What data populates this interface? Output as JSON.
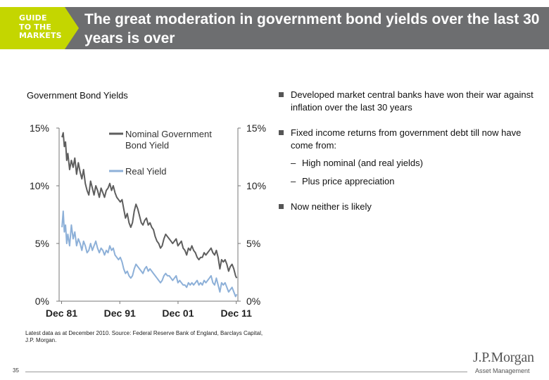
{
  "header": {
    "logo_lines": [
      "GUIDE",
      "TO THE",
      "MARKETS"
    ],
    "title": "The great moderation in government bond yields over the last 30 years is over"
  },
  "colors": {
    "header_bar": "#6d6e70",
    "logo_accent": "#c4d600",
    "nominal_series": "#5e5e5e",
    "real_series": "#8db0d8"
  },
  "chart_data": {
    "type": "line",
    "title": "Government Bond Yields",
    "x_tick_labels": [
      "Dec 81",
      "Dec 91",
      "Dec 01",
      "Dec 11"
    ],
    "x_tick_years": [
      1981.92,
      1991.92,
      2001.92,
      2011.92
    ],
    "xlim": [
      1981.5,
      2012.2
    ],
    "ylim": [
      0,
      15
    ],
    "y_tick_values": [
      0,
      5,
      10,
      15
    ],
    "y_tick_labels": [
      "0%",
      "5%",
      "10%",
      "15%"
    ],
    "dual_axis": true,
    "right_tick_labels": [
      "0%",
      "5%",
      "10%",
      "15%"
    ],
    "grid": false,
    "legend_position": "top-left-inside",
    "series": [
      {
        "name": "Nominal Government Bond Yield",
        "color": "#5e5e5e",
        "x": [
          1982.0,
          1982.2,
          1982.4,
          1982.6,
          1982.8,
          1983.0,
          1983.3,
          1983.6,
          1983.9,
          1984.2,
          1984.5,
          1984.8,
          1985.1,
          1985.4,
          1985.7,
          1986.0,
          1986.3,
          1986.6,
          1986.9,
          1987.2,
          1987.5,
          1987.8,
          1988.1,
          1988.4,
          1988.7,
          1989.0,
          1989.3,
          1989.6,
          1989.9,
          1990.2,
          1990.5,
          1990.8,
          1991.1,
          1991.4,
          1991.7,
          1992.0,
          1992.3,
          1992.6,
          1992.9,
          1993.2,
          1993.5,
          1993.8,
          1994.1,
          1994.4,
          1994.7,
          1995.0,
          1995.3,
          1995.6,
          1995.9,
          1996.2,
          1996.5,
          1996.8,
          1997.1,
          1997.4,
          1997.7,
          1998.0,
          1998.3,
          1998.6,
          1998.9,
          1999.2,
          1999.5,
          1999.8,
          2000.1,
          2000.4,
          2000.7,
          2001.0,
          2001.3,
          2001.6,
          2001.9,
          2002.2,
          2002.5,
          2002.8,
          2003.1,
          2003.4,
          2003.7,
          2004.0,
          2004.3,
          2004.6,
          2004.9,
          2005.2,
          2005.5,
          2005.8,
          2006.1,
          2006.4,
          2006.7,
          2007.0,
          2007.3,
          2007.6,
          2007.9,
          2008.2,
          2008.5,
          2008.8,
          2009.1,
          2009.4,
          2009.7,
          2010.0,
          2010.3,
          2010.6,
          2010.9,
          2011.2,
          2011.5,
          2011.8,
          2012.0
        ],
        "values": [
          14.2,
          14.6,
          13.4,
          13.8,
          12.2,
          12.8,
          11.4,
          12.2,
          11.6,
          12.4,
          11.0,
          12.0,
          11.2,
          10.6,
          11.4,
          10.2,
          9.6,
          9.2,
          10.4,
          9.8,
          9.2,
          10.0,
          9.6,
          9.0,
          9.8,
          9.4,
          9.0,
          9.6,
          9.8,
          10.2,
          9.6,
          10.0,
          9.4,
          9.0,
          8.8,
          8.6,
          8.8,
          8.0,
          7.2,
          7.6,
          6.8,
          6.4,
          6.8,
          7.8,
          8.4,
          8.0,
          7.4,
          6.8,
          6.6,
          7.0,
          7.2,
          6.6,
          6.8,
          6.4,
          6.2,
          5.6,
          5.2,
          5.0,
          4.6,
          4.8,
          5.4,
          5.8,
          5.6,
          5.4,
          5.2,
          5.0,
          5.2,
          5.4,
          4.8,
          5.0,
          5.2,
          4.6,
          4.4,
          4.0,
          4.6,
          4.4,
          4.8,
          4.4,
          4.2,
          3.8,
          3.6,
          3.8,
          3.8,
          4.2,
          4.0,
          4.2,
          4.4,
          4.6,
          4.2,
          4.0,
          4.4,
          3.8,
          2.8,
          3.6,
          3.4,
          3.6,
          3.2,
          2.6,
          3.0,
          3.2,
          2.8,
          2.2,
          2.0
        ]
      },
      {
        "name": "Real Yield",
        "color": "#8db0d8",
        "x": [
          1982.0,
          1982.2,
          1982.4,
          1982.6,
          1982.8,
          1983.0,
          1983.3,
          1983.6,
          1983.9,
          1984.2,
          1984.5,
          1984.8,
          1985.1,
          1985.4,
          1985.7,
          1986.0,
          1986.3,
          1986.6,
          1986.9,
          1987.2,
          1987.5,
          1987.8,
          1988.1,
          1988.4,
          1988.7,
          1989.0,
          1989.3,
          1989.6,
          1989.9,
          1990.2,
          1990.5,
          1990.8,
          1991.1,
          1991.4,
          1991.7,
          1992.0,
          1992.3,
          1992.6,
          1992.9,
          1993.2,
          1993.5,
          1993.8,
          1994.1,
          1994.4,
          1994.7,
          1995.0,
          1995.3,
          1995.6,
          1995.9,
          1996.2,
          1996.5,
          1996.8,
          1997.1,
          1997.4,
          1997.7,
          1998.0,
          1998.3,
          1998.6,
          1998.9,
          1999.2,
          1999.5,
          1999.8,
          2000.1,
          2000.4,
          2000.7,
          2001.0,
          2001.3,
          2001.6,
          2001.9,
          2002.2,
          2002.5,
          2002.8,
          2003.1,
          2003.4,
          2003.7,
          2004.0,
          2004.3,
          2004.6,
          2004.9,
          2005.2,
          2005.5,
          2005.8,
          2006.1,
          2006.4,
          2006.7,
          2007.0,
          2007.3,
          2007.6,
          2007.9,
          2008.2,
          2008.5,
          2008.8,
          2009.1,
          2009.4,
          2009.7,
          2010.0,
          2010.3,
          2010.6,
          2010.9,
          2011.2,
          2011.5,
          2011.8,
          2012.0
        ],
        "values": [
          6.4,
          7.8,
          6.0,
          6.6,
          5.0,
          5.8,
          4.8,
          6.6,
          5.4,
          6.0,
          4.8,
          5.4,
          5.0,
          4.4,
          5.2,
          4.8,
          4.2,
          4.4,
          5.0,
          4.4,
          4.8,
          5.2,
          4.6,
          4.2,
          4.6,
          4.4,
          4.0,
          4.4,
          4.2,
          4.8,
          4.4,
          4.6,
          4.0,
          3.8,
          3.6,
          3.8,
          3.4,
          2.8,
          2.4,
          2.6,
          2.2,
          2.0,
          2.2,
          2.8,
          3.2,
          3.0,
          2.8,
          2.6,
          2.4,
          2.8,
          3.0,
          2.6,
          2.8,
          2.6,
          2.4,
          2.2,
          2.0,
          1.8,
          1.6,
          1.8,
          2.2,
          2.4,
          2.2,
          2.2,
          2.0,
          1.8,
          2.0,
          2.2,
          1.6,
          1.8,
          1.6,
          1.4,
          1.4,
          1.2,
          1.6,
          1.4,
          1.6,
          1.4,
          1.6,
          1.8,
          1.4,
          1.6,
          1.4,
          1.8,
          1.6,
          1.8,
          2.0,
          2.2,
          1.6,
          1.4,
          2.0,
          1.4,
          0.8,
          1.6,
          1.4,
          1.6,
          1.2,
          0.8,
          1.0,
          1.2,
          0.8,
          0.4,
          0.6
        ]
      }
    ]
  },
  "legend": {
    "nominal_line1": "Nominal Government",
    "nominal_line2": "Bond Yield",
    "real": "Real Yield"
  },
  "bullets": {
    "b1": "Developed market central banks have won their war against inflation over the last 30 years",
    "b2": "Fixed income returns from government debt till now have come from:",
    "sub1": "High nominal (and real yields)",
    "sub2": "Plus price appreciation",
    "b3": "Now neither is likely",
    "dash": "–"
  },
  "footer": {
    "source": "Latest data as at December 2010. Source: Federal Reserve Bank of England, Barclays Capital, J.P. Morgan.",
    "page_number": "35",
    "brand": "J.P.Morgan",
    "brand_sub": "Asset Management"
  }
}
